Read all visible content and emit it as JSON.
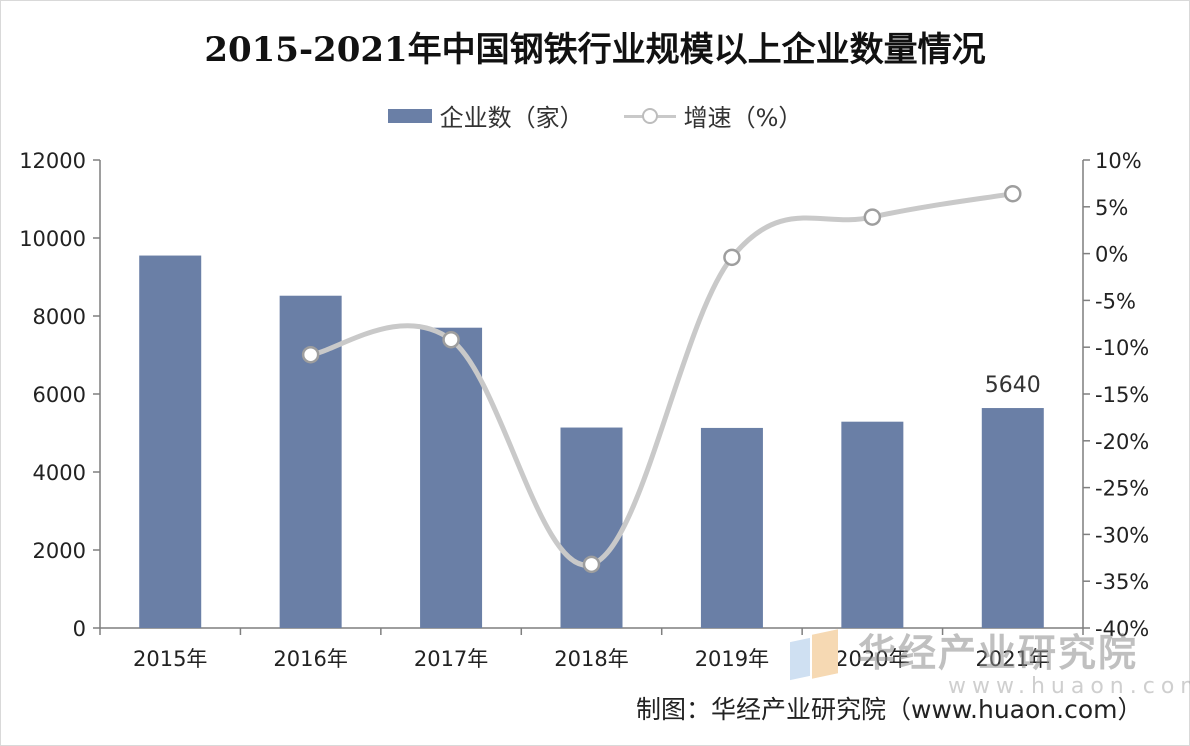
{
  "title": "2015-2021年中国钢铁行业规模以上企业数量情况",
  "legend": {
    "bar_label": "企业数（家）",
    "line_label": "增速（%）"
  },
  "source": "制图：华经产业研究院（www.huaon.com）",
  "watermark": {
    "text": "华经产业研究院",
    "url": "www.huaon.com"
  },
  "colors": {
    "bar": "#6a7fa6",
    "line": "#c9c9c9",
    "marker_stroke": "#9e9e9e"
  },
  "chart_data": {
    "type": "bar",
    "categories": [
      "2015年",
      "2016年",
      "2017年",
      "2018年",
      "2019年",
      "2020年",
      "2021年"
    ],
    "series": [
      {
        "name": "企业数（家）",
        "type": "bar",
        "axis": "left",
        "values": [
          9550,
          8520,
          7700,
          5140,
          5130,
          5290,
          5640
        ]
      },
      {
        "name": "增速（%）",
        "type": "line",
        "axis": "right",
        "values": [
          null,
          -10.8,
          -9.2,
          -33.2,
          -0.4,
          3.9,
          6.4
        ]
      }
    ],
    "data_labels": [
      {
        "category": "2021年",
        "text": "5640"
      }
    ],
    "y_left": {
      "min": 0,
      "max": 12000,
      "ticks": [
        0,
        2000,
        4000,
        6000,
        8000,
        10000,
        12000
      ],
      "tick_labels": [
        "0",
        "2000",
        "4000",
        "6000",
        "8000",
        "10000",
        "12000"
      ]
    },
    "y_right": {
      "min": -40,
      "max": 10,
      "ticks": [
        -40,
        -35,
        -30,
        -25,
        -20,
        -15,
        -10,
        -5,
        0,
        5,
        10
      ],
      "tick_labels": [
        "-40%",
        "-35%",
        "-30%",
        "-25%",
        "-20%",
        "-15%",
        "-10%",
        "-5%",
        "0%",
        "5%",
        "10%"
      ]
    },
    "grid": false,
    "legend_position": "top-center"
  }
}
